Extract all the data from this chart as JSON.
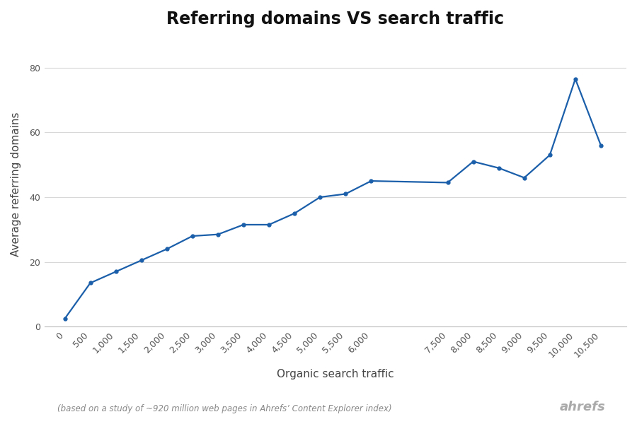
{
  "title": "Referring domains VS search traffic",
  "xlabel": "Organic search traffic",
  "ylabel": "Average referring domains",
  "footnote": "(based on a study of ~920 million web pages in Ahrefs’ Content Explorer index)",
  "branding": "ahrefs",
  "x": [
    0,
    500,
    1000,
    1500,
    2000,
    2500,
    3000,
    3500,
    4000,
    4500,
    5000,
    5500,
    6000,
    7500,
    8000,
    8500,
    9000,
    9500,
    10000,
    10500
  ],
  "y": [
    2.5,
    13.5,
    17.0,
    20.5,
    24.0,
    28.0,
    28.5,
    31.5,
    31.5,
    35.0,
    40.0,
    41.0,
    45.0,
    44.5,
    51.0,
    49.0,
    46.0,
    53.0,
    76.5,
    56.0
  ],
  "line_color": "#1b5faa",
  "background_color": "#ffffff",
  "grid_color": "#d8d8d8",
  "title_fontsize": 17,
  "label_fontsize": 11,
  "tick_fontsize": 9,
  "footnote_fontsize": 8.5,
  "branding_fontsize": 13,
  "ylim_min": 0,
  "ylim_max": 88,
  "yticks": [
    0,
    20,
    40,
    60,
    80
  ],
  "xticks": [
    0,
    500,
    1000,
    1500,
    2000,
    2500,
    3000,
    3500,
    4000,
    4500,
    5000,
    5500,
    6000,
    7500,
    8000,
    8500,
    9000,
    9500,
    10000,
    10500
  ],
  "xlim_min": -400,
  "xlim_max": 11000
}
